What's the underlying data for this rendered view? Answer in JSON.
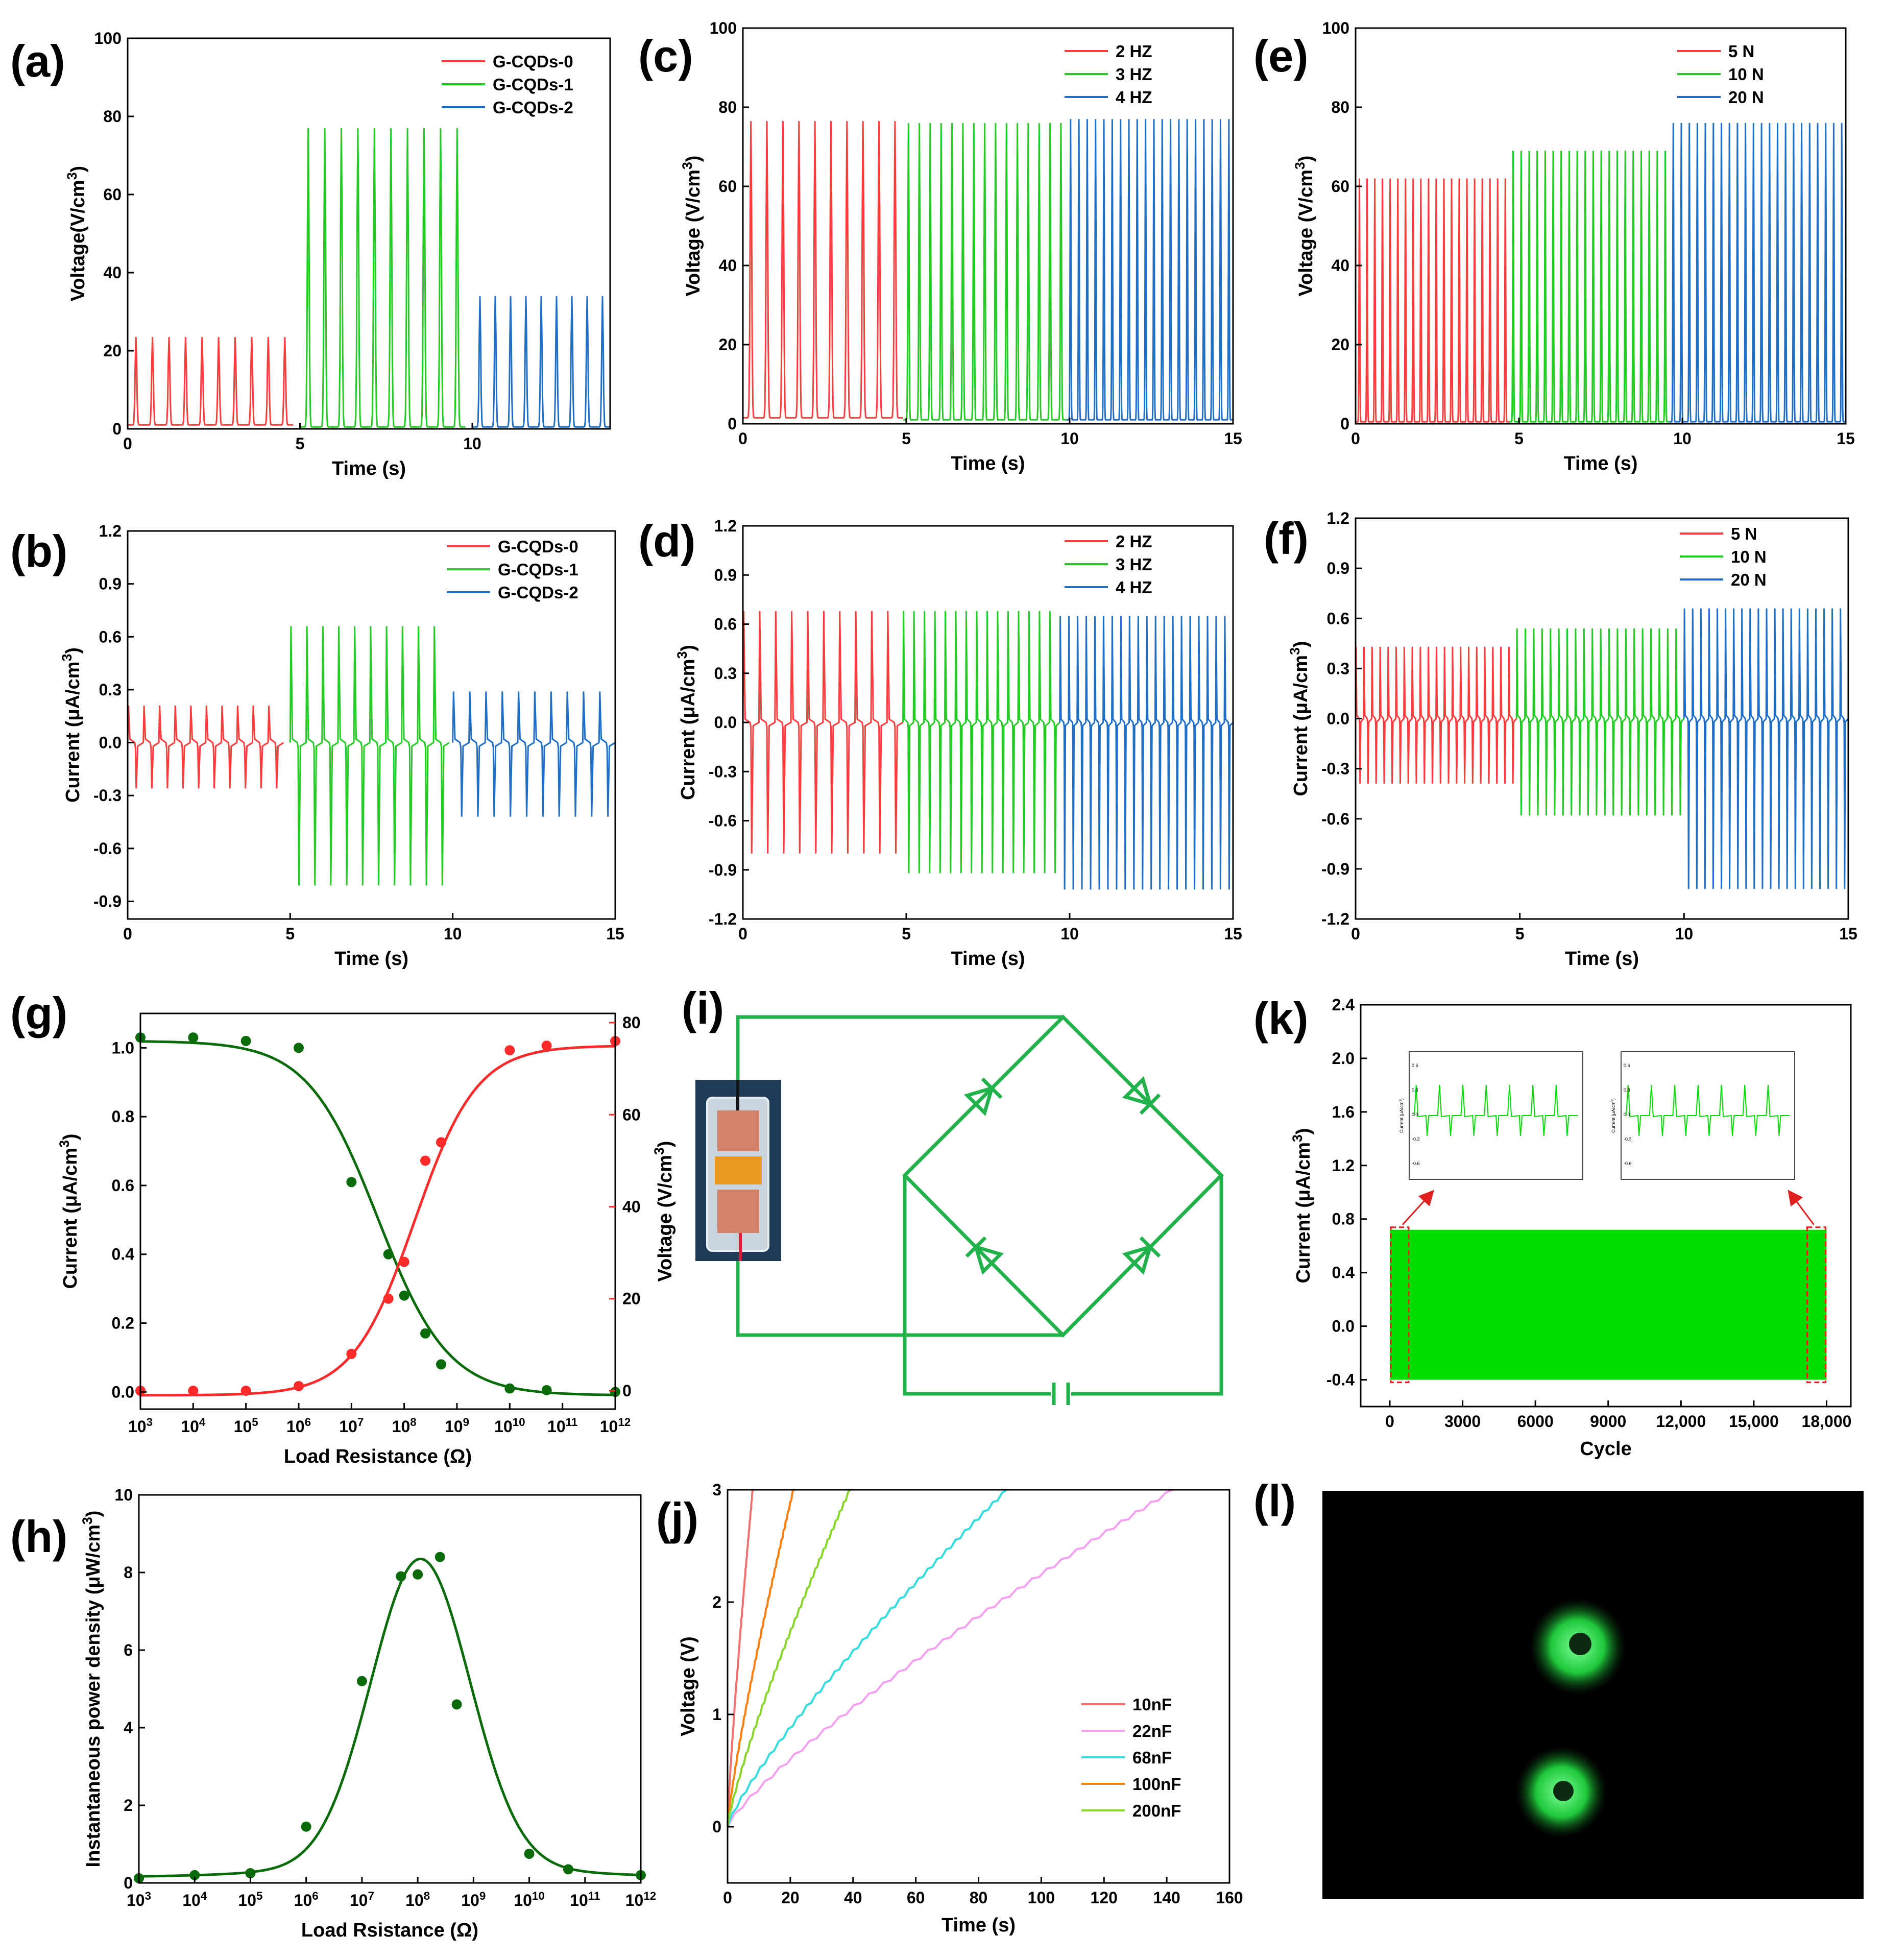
{
  "panels": {
    "a": {
      "label": "(a)",
      "chart_data": {
        "type": "line",
        "xlabel": "Time (s)",
        "ylabel": "Voltage(V/cm3)",
        "xlim": [
          0,
          14
        ],
        "ylim": [
          0,
          100
        ],
        "xticks": [
          "0",
          "5",
          "10"
        ],
        "yticks": [
          "0",
          "20",
          "40",
          "60",
          "80",
          "100"
        ],
        "legend_position": "top-right",
        "series": [
          {
            "name": "G-CQDs-0",
            "color": "#ff3b3b",
            "t_start": 0,
            "t_end": 4.8,
            "peaks": 10,
            "peak_value": 23.5,
            "baseline": 1
          },
          {
            "name": "G-CQDs-1",
            "color": "#22cc22",
            "t_start": 5,
            "t_end": 9.8,
            "peaks": 10,
            "peak_value": 77,
            "baseline": 0.5
          },
          {
            "name": "G-CQDs-2",
            "color": "#1f6fc8",
            "t_start": 10,
            "t_end": 14,
            "peaks": 9,
            "peak_value": 34,
            "baseline": 0.5
          }
        ]
      }
    },
    "b": {
      "label": "(b)",
      "chart_data": {
        "type": "line",
        "xlabel": "Time (s)",
        "ylabel": "Current (μA/cm3)",
        "xlim": [
          0,
          15
        ],
        "ylim": [
          -1.0,
          1.2
        ],
        "xticks": [
          "0",
          "5",
          "10",
          "15"
        ],
        "yticks": [
          "-0.9",
          "-0.6",
          "-0.3",
          "0.0",
          "0.3",
          "0.6",
          "0.9",
          "1.2"
        ],
        "legend_position": "top-right",
        "series": [
          {
            "name": "G-CQDs-0",
            "color": "#ff3b3b",
            "t_start": 0,
            "t_end": 4.8,
            "peaks": 10,
            "pos_peak": 0.21,
            "neg_peak": -0.26
          },
          {
            "name": "G-CQDs-1",
            "color": "#22cc22",
            "t_start": 5,
            "t_end": 9.9,
            "peaks": 10,
            "pos_peak": 0.66,
            "neg_peak": -0.81
          },
          {
            "name": "G-CQDs-2",
            "color": "#1f6fc8",
            "t_start": 10,
            "t_end": 15,
            "peaks": 10,
            "pos_peak": 0.29,
            "neg_peak": -0.42
          }
        ]
      }
    },
    "c": {
      "label": "(c)",
      "chart_data": {
        "type": "line",
        "xlabel": "Time (s)",
        "ylabel": "Voltage (V/cm3)",
        "xlim": [
          0,
          15
        ],
        "ylim": [
          0,
          100
        ],
        "xticks": [
          "0",
          "5",
          "10",
          "15"
        ],
        "yticks": [
          "0",
          "20",
          "40",
          "60",
          "80",
          "100"
        ],
        "legend_position": "top-right",
        "series": [
          {
            "name": "2 HZ",
            "color": "#ff3b3b",
            "t_start": 0,
            "t_end": 4.9,
            "peaks": 10,
            "peak_value": 76.5,
            "baseline": 1.5
          },
          {
            "name": "3 HZ",
            "color": "#22cc22",
            "t_start": 4.9,
            "t_end": 9.9,
            "peaks": 15,
            "peak_value": 76,
            "baseline": 1
          },
          {
            "name": "4 HZ",
            "color": "#1f6fc8",
            "t_start": 9.9,
            "t_end": 15,
            "peaks": 20,
            "peak_value": 77,
            "baseline": 1
          }
        ]
      }
    },
    "d": {
      "label": "(d)",
      "chart_data": {
        "type": "line",
        "xlabel": "Time (s)",
        "ylabel": "Current (μA/cm3)",
        "xlim": [
          0,
          15
        ],
        "ylim": [
          -1.2,
          1.2
        ],
        "xticks": [
          "0",
          "5",
          "10",
          "15"
        ],
        "yticks": [
          "-1.2",
          "-0.9",
          "-0.6",
          "-0.3",
          "0.0",
          "0.3",
          "0.6",
          "0.9",
          "1.2"
        ],
        "legend_position": "top-right",
        "series": [
          {
            "name": "2 HZ",
            "color": "#ff3b3b",
            "t_start": 0,
            "t_end": 4.9,
            "peaks": 10,
            "pos_peak": 0.68,
            "neg_peak": -0.8
          },
          {
            "name": "3 HZ",
            "color": "#22cc22",
            "t_start": 4.9,
            "t_end": 9.7,
            "peaks": 15,
            "pos_peak": 0.68,
            "neg_peak": -0.92
          },
          {
            "name": "4 HZ",
            "color": "#1f6fc8",
            "t_start": 9.7,
            "t_end": 15,
            "peaks": 20,
            "pos_peak": 0.65,
            "neg_peak": -1.02
          }
        ]
      }
    },
    "e": {
      "label": "(e)",
      "chart_data": {
        "type": "line",
        "xlabel": "Time (s)",
        "ylabel": "Voltage (V/cm3)",
        "xlim": [
          0,
          15
        ],
        "ylim": [
          0,
          100
        ],
        "xticks": [
          "0",
          "5",
          "10",
          "15"
        ],
        "yticks": [
          "0",
          "20",
          "40",
          "60",
          "80",
          "100"
        ],
        "legend_position": "top-right",
        "series": [
          {
            "name": "5 N",
            "color": "#ff3b3b",
            "t_start": 0,
            "t_end": 4.7,
            "peaks": 20,
            "peak_value": 62,
            "baseline": 0.5
          },
          {
            "name": "10 N",
            "color": "#22cc22",
            "t_start": 4.7,
            "t_end": 9.6,
            "peaks": 20,
            "peak_value": 69,
            "baseline": 0.5
          },
          {
            "name": "20 N",
            "color": "#1f6fc8",
            "t_start": 9.6,
            "t_end": 15,
            "peaks": 22,
            "peak_value": 76,
            "baseline": 0.5
          }
        ]
      }
    },
    "f": {
      "label": "(f)",
      "chart_data": {
        "type": "line",
        "xlabel": "Time (s)",
        "ylabel": "Current (μA/cm3)",
        "xlim": [
          0,
          15
        ],
        "ylim": [
          -1.2,
          1.2
        ],
        "xticks": [
          "0",
          "5",
          "10",
          "15"
        ],
        "yticks": [
          "-1.2",
          "-0.9",
          "-0.6",
          "-0.3",
          "0.0",
          "0.3",
          "0.6",
          "0.9",
          "1.2"
        ],
        "legend_position": "top-right",
        "series": [
          {
            "name": "5 N",
            "color": "#ff3b3b",
            "t_start": 0,
            "t_end": 4.9,
            "peaks": 20,
            "pos_peak": 0.43,
            "neg_peak": -0.39
          },
          {
            "name": "10 N",
            "color": "#22cc22",
            "t_start": 4.9,
            "t_end": 10,
            "peaks": 20,
            "pos_peak": 0.54,
            "neg_peak": -0.58
          },
          {
            "name": "20 N",
            "color": "#1f6fc8",
            "t_start": 10,
            "t_end": 15,
            "peaks": 20,
            "pos_peak": 0.66,
            "neg_peak": -1.02
          }
        ]
      }
    },
    "g": {
      "label": "(g)",
      "chart_data": {
        "type": "scatter",
        "xlabel": "Load Resistance (Ω)",
        "ylabel_left": "Current (μA/cm3)",
        "ylabel_right": "Voltage (V/cm3)",
        "x_log_exponents": [
          3,
          4,
          5,
          6,
          7,
          8,
          9,
          10,
          11,
          12
        ],
        "x_tick_base": "10",
        "ylim_left": [
          -0.05,
          1.1
        ],
        "ylim_right": [
          -4,
          82
        ],
        "yticks_left": [
          "0.0",
          "0.2",
          "0.4",
          "0.6",
          "0.8",
          "1.0"
        ],
        "yticks_right": [
          "0",
          "20",
          "40",
          "60",
          "80"
        ],
        "left_color": "#0a6b0a",
        "right_color": "#ff2a2a",
        "current_points": [
          [
            3,
            1.03
          ],
          [
            4,
            1.03
          ],
          [
            5,
            1.02
          ],
          [
            6,
            1.0
          ],
          [
            7,
            0.61
          ],
          [
            7.7,
            0.4
          ],
          [
            8,
            0.28
          ],
          [
            8.4,
            0.17
          ],
          [
            8.7,
            0.08
          ],
          [
            10,
            0.01
          ],
          [
            10.7,
            0.005
          ],
          [
            12,
            0.0
          ]
        ],
        "voltage_points": [
          [
            3,
            0
          ],
          [
            4,
            0
          ],
          [
            5,
            0
          ],
          [
            6,
            1
          ],
          [
            7,
            8
          ],
          [
            7.7,
            20
          ],
          [
            8,
            28
          ],
          [
            8.4,
            50
          ],
          [
            8.7,
            54
          ],
          [
            10,
            74
          ],
          [
            10.7,
            75
          ],
          [
            12,
            76
          ]
        ]
      }
    },
    "h": {
      "label": "(h)",
      "chart_data": {
        "type": "scatter",
        "xlabel": "Load Rsistance  (Ω)",
        "ylabel": "Instantaneous power density (μW/cm3)",
        "x_log_exponents": [
          3,
          4,
          5,
          6,
          7,
          8,
          9,
          10,
          11,
          12
        ],
        "x_tick_base": "10",
        "ylim": [
          0,
          10
        ],
        "yticks": [
          "0",
          "2",
          "4",
          "6",
          "8",
          "10"
        ],
        "color": "#0a6b0a",
        "points": [
          [
            3,
            0.12
          ],
          [
            4,
            0.2
          ],
          [
            5,
            0.25
          ],
          [
            6,
            1.45
          ],
          [
            7,
            5.2
          ],
          [
            7.7,
            7.9
          ],
          [
            8,
            7.95
          ],
          [
            8.4,
            8.4
          ],
          [
            8.7,
            4.6
          ],
          [
            10,
            0.75
          ],
          [
            10.7,
            0.35
          ],
          [
            12,
            0.2
          ]
        ]
      }
    },
    "i": {
      "label": "(i)"
    },
    "j": {
      "label": "(j)",
      "chart_data": {
        "type": "line",
        "xlabel": "Time (s)",
        "ylabel": "Voltage (V)",
        "xlim": [
          0,
          160
        ],
        "ylim": [
          -0.5,
          3
        ],
        "xticks": [
          "0",
          "20",
          "40",
          "60",
          "80",
          "100",
          "120",
          "140",
          "160"
        ],
        "yticks": [
          "0",
          "1",
          "2",
          "3"
        ],
        "legend_position": "lower-right",
        "series": [
          {
            "name": "10nF",
            "color": "#f07070",
            "t_full": 8
          },
          {
            "name": "22nF",
            "color": "#f5a0f0",
            "t_full": 142
          },
          {
            "name": "68nF",
            "color": "#33dddd",
            "t_full": 89
          },
          {
            "name": "100nF",
            "color": "#ff7f0e",
            "t_full": 21
          },
          {
            "name": "200nF",
            "color": "#88d62c",
            "t_full": 39
          }
        ]
      }
    },
    "k": {
      "label": "(k)",
      "chart_data": {
        "type": "line",
        "xlabel": "Cycle",
        "ylabel": "Current (μA/cm3)",
        "xlim": [
          -1200,
          19000
        ],
        "ylim": [
          -0.6,
          2.4
        ],
        "xticks": [
          "0",
          "3000",
          "6000",
          "9000",
          "12,000",
          "15,000",
          "18,000"
        ],
        "ytick_labels": [
          "-0.4",
          "0.0",
          "0.4",
          "0.8",
          "1.2",
          "1.6",
          "2.0",
          "2.4"
        ],
        "color": "#00dd00",
        "band_min": -0.4,
        "band_max": 0.72,
        "cycles_end": 18000,
        "inset_left": {
          "yticks": [
            "0.6",
            "0.3",
            "0.0",
            "-0.3",
            "-0.6"
          ],
          "ylabel": "Current (μA/cm3)"
        },
        "inset_right": {
          "yticks": [
            "0.6",
            "0.3",
            "0.0",
            "-0.3",
            "-0.6"
          ],
          "ylabel": "Current (μA/cm3)"
        }
      }
    },
    "l": {
      "label": "(l)"
    }
  }
}
